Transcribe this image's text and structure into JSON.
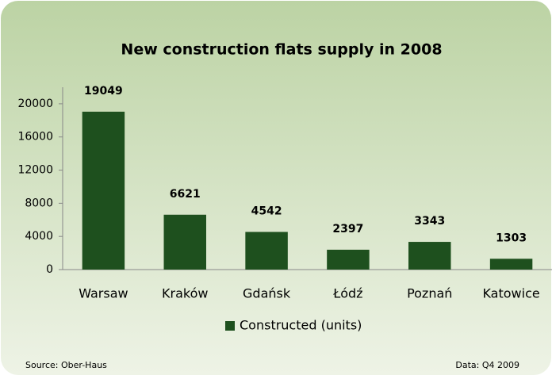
{
  "chart_data": {
    "type": "bar",
    "title": "New construction flats supply in 2008",
    "categories": [
      "Warsaw",
      "Kraków",
      "Gdańsk",
      "Łódź",
      "Poznań",
      "Katowice"
    ],
    "series": [
      {
        "name": "Constructed (units)",
        "color": "#1e501e",
        "values": [
          19049,
          6621,
          4542,
          2397,
          3343,
          1303
        ]
      }
    ],
    "ylim": [
      0,
      22000
    ],
    "yticks": [
      0,
      4000,
      8000,
      12000,
      16000,
      20000
    ],
    "legend": "bottom",
    "source": "Source: Ober-Haus",
    "data_note": "Data: Q4 2009"
  }
}
